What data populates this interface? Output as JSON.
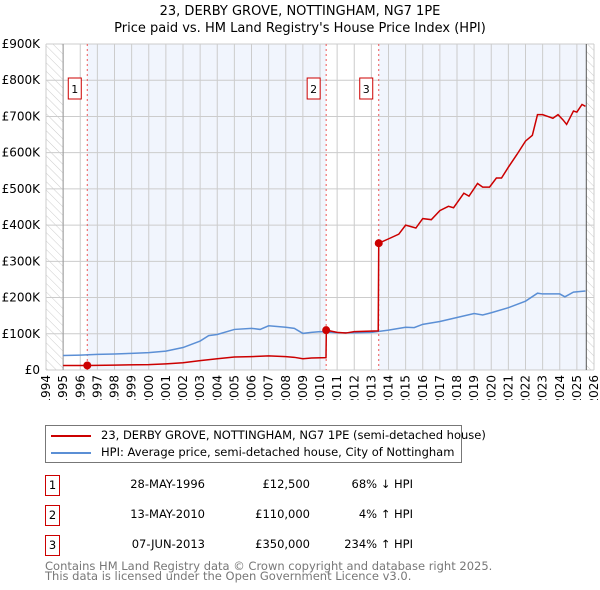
{
  "chart_data": {
    "type": "line",
    "title": "23, DERBY GROVE, NOTTINGHAM, NG7 1PE",
    "subtitle": "Price paid vs. HM Land Registry's House Price Index (HPI)",
    "xlim": [
      1994,
      2026
    ],
    "ylim": [
      0,
      900000
    ],
    "x_ticks": [
      "1994",
      "1995",
      "1996",
      "1997",
      "1998",
      "1999",
      "2000",
      "2001",
      "2002",
      "2003",
      "2004",
      "2005",
      "2006",
      "2007",
      "2008",
      "2009",
      "2010",
      "2011",
      "2012",
      "2013",
      "2014",
      "2015",
      "2016",
      "2017",
      "2018",
      "2019",
      "2020",
      "2021",
      "2022",
      "2023",
      "2024",
      "2025",
      "2026"
    ],
    "y_ticks": [
      {
        "v": 0,
        "label": "£0"
      },
      {
        "v": 100000,
        "label": "£100K"
      },
      {
        "v": 200000,
        "label": "£200K"
      },
      {
        "v": 300000,
        "label": "£300K"
      },
      {
        "v": 400000,
        "label": "£400K"
      },
      {
        "v": 500000,
        "label": "£500K"
      },
      {
        "v": 600000,
        "label": "£600K"
      },
      {
        "v": 700000,
        "label": "£700K"
      },
      {
        "v": 800000,
        "label": "£800K"
      },
      {
        "v": 900000,
        "label": "£900K"
      }
    ],
    "grid": true,
    "series": [
      {
        "name": "23, DERBY GROVE, NOTTINGHAM, NG7 1PE (semi-detached house)",
        "color": "#cc0000",
        "points": [
          [
            1995,
            12500
          ],
          [
            1996.4,
            12500
          ],
          [
            1998,
            13500
          ],
          [
            2000,
            15000
          ],
          [
            2001,
            17000
          ],
          [
            2002,
            20000
          ],
          [
            2003,
            26000
          ],
          [
            2004,
            31000
          ],
          [
            2005,
            36000
          ],
          [
            2006,
            37000
          ],
          [
            2007,
            39000
          ],
          [
            2008,
            37000
          ],
          [
            2008.5,
            35000
          ],
          [
            2009,
            31000
          ],
          [
            2009.5,
            33000
          ],
          [
            2010.35,
            34000
          ],
          [
            2010.37,
            110000
          ],
          [
            2011,
            104000
          ],
          [
            2011.5,
            102000
          ],
          [
            2012,
            106000
          ],
          [
            2013.4,
            108000
          ],
          [
            2013.43,
            350000
          ],
          [
            2014,
            362000
          ],
          [
            2014.6,
            375000
          ],
          [
            2015,
            400000
          ],
          [
            2015.6,
            392000
          ],
          [
            2016,
            418000
          ],
          [
            2016.5,
            415000
          ],
          [
            2017,
            440000
          ],
          [
            2017.5,
            452000
          ],
          [
            2017.8,
            448000
          ],
          [
            2018.4,
            488000
          ],
          [
            2018.7,
            480000
          ],
          [
            2019.2,
            515000
          ],
          [
            2019.5,
            505000
          ],
          [
            2019.9,
            505000
          ],
          [
            2020.3,
            530000
          ],
          [
            2020.6,
            530000
          ],
          [
            2021,
            560000
          ],
          [
            2021.5,
            595000
          ],
          [
            2022,
            632000
          ],
          [
            2022.4,
            648000
          ],
          [
            2022.7,
            705000
          ],
          [
            2023,
            705000
          ],
          [
            2023.3,
            700000
          ],
          [
            2023.6,
            695000
          ],
          [
            2023.9,
            705000
          ],
          [
            2024.2,
            690000
          ],
          [
            2024.4,
            678000
          ],
          [
            2024.8,
            715000
          ],
          [
            2025.0,
            712000
          ],
          [
            2025.3,
            733000
          ],
          [
            2025.5,
            728000
          ]
        ]
      },
      {
        "name": "HPI: Average price, semi-detached house, City of Nottingham",
        "color": "#5b8fd5",
        "points": [
          [
            1995,
            40000
          ],
          [
            1996,
            41000
          ],
          [
            1997,
            43000
          ],
          [
            1998,
            44000
          ],
          [
            1999,
            46000
          ],
          [
            2000,
            48000
          ],
          [
            2001,
            52000
          ],
          [
            2002,
            62000
          ],
          [
            2003,
            80000
          ],
          [
            2003.5,
            95000
          ],
          [
            2004,
            98000
          ],
          [
            2005,
            112000
          ],
          [
            2006,
            115000
          ],
          [
            2006.5,
            112000
          ],
          [
            2007,
            122000
          ],
          [
            2008,
            118000
          ],
          [
            2008.5,
            115000
          ],
          [
            2009,
            101000
          ],
          [
            2009.5,
            104000
          ],
          [
            2010,
            106000
          ],
          [
            2011,
            103000
          ],
          [
            2012,
            103000
          ],
          [
            2013,
            104000
          ],
          [
            2014,
            110000
          ],
          [
            2015,
            118000
          ],
          [
            2015.5,
            117000
          ],
          [
            2016,
            126000
          ],
          [
            2017,
            134000
          ],
          [
            2018,
            145000
          ],
          [
            2019,
            156000
          ],
          [
            2019.5,
            152000
          ],
          [
            2020,
            158000
          ],
          [
            2021,
            172000
          ],
          [
            2022,
            190000
          ],
          [
            2022.7,
            212000
          ],
          [
            2023,
            210000
          ],
          [
            2024,
            210000
          ],
          [
            2024.3,
            202000
          ],
          [
            2024.8,
            215000
          ],
          [
            2025.5,
            218000
          ]
        ]
      }
    ],
    "sales": [
      {
        "n": "1",
        "x": 1996.41,
        "value": 12500,
        "date": "28-MAY-1996",
        "price": "£12,500",
        "hpi": "68% ↓ HPI"
      },
      {
        "n": "2",
        "x": 2010.36,
        "value": 110000,
        "date": "13-MAY-2010",
        "price": "£110,000",
        "hpi": "4% ↑ HPI"
      },
      {
        "n": "3",
        "x": 2013.43,
        "value": 350000,
        "date": "07-JUN-2013",
        "price": "£350,000",
        "hpi": "234% ↑ HPI"
      }
    ],
    "data_start": 1995,
    "data_end": 2025.55,
    "legend_position": "bottom"
  },
  "footer": {
    "line1": "Contains HM Land Registry data © Crown copyright and database right 2025.",
    "line2": "This data is licensed under the Open Government Licence v3.0."
  }
}
